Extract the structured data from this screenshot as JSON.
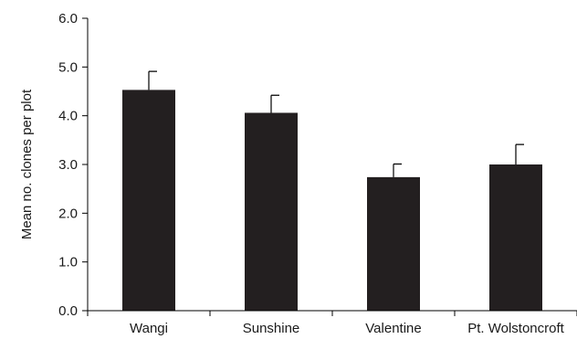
{
  "chart_data": {
    "type": "bar",
    "title": "",
    "xlabel": "",
    "ylabel": "Mean no. clones per plot",
    "ylim": [
      0,
      6
    ],
    "yticks": [
      0,
      1,
      2,
      3,
      4,
      5,
      6
    ],
    "ytick_labels": [
      "0.0",
      "1.0",
      "2.0",
      "3.0",
      "4.0",
      "5.0",
      "6.0"
    ],
    "categories": [
      "Wangi",
      "Sunshine",
      "Valentine",
      "Pt. Wolstoncroft"
    ],
    "values": [
      4.53,
      4.06,
      2.74,
      3.0
    ],
    "error_upper": [
      0.38,
      0.36,
      0.27,
      0.41
    ],
    "grid": false,
    "legend": "none",
    "colors": {
      "bar": "#231f20",
      "axis": "#000000",
      "text": "#1a1a1a"
    }
  }
}
